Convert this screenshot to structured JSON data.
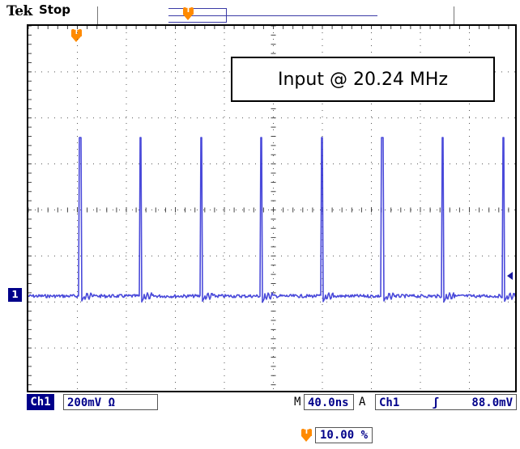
{
  "header": {
    "brand": "Tek",
    "state": "Stop"
  },
  "annotation": "Input @ 20.24 MHz",
  "channel_marker": "1",
  "status": {
    "channel": "Ch1",
    "volts_div": "200mV Ω",
    "time_label": "M",
    "time_div": "40.0ns",
    "trigger_mode": "A",
    "trigger_source": "Ch1",
    "trigger_slope": "ʃ",
    "trigger_level": "88.0mV"
  },
  "trigger_position": "10.00 %",
  "colors": {
    "trace": "#2a2ad4",
    "trigger_marker": "#ff8a00",
    "channel": "#00008a"
  },
  "icons": [
    "trigger-position-icon",
    "trigger-level-arrow-icon"
  ]
}
